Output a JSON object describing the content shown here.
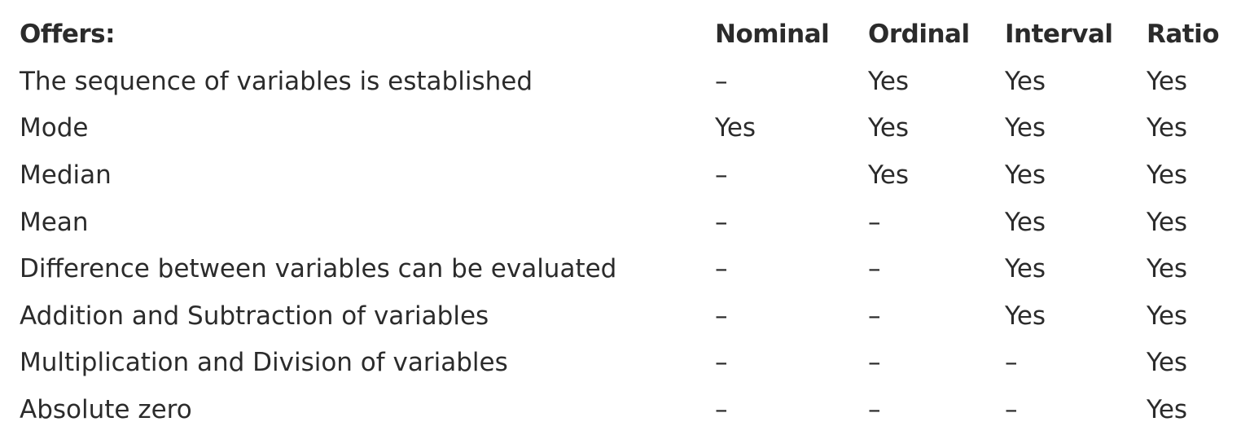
{
  "table": {
    "headers": [
      "Offers:",
      "Nominal",
      "Ordinal",
      "Interval",
      "Ratio"
    ],
    "rows": [
      [
        "The sequence of variables is established",
        "–",
        "Yes",
        "Yes",
        "Yes"
      ],
      [
        "Mode",
        "Yes",
        "Yes",
        "Yes",
        "Yes"
      ],
      [
        "Median",
        "–",
        "Yes",
        "Yes",
        "Yes"
      ],
      [
        "Mean",
        "–",
        "–",
        "Yes",
        "Yes"
      ],
      [
        "Difference between variables can be evaluated",
        "–",
        "–",
        "Yes",
        "Yes"
      ],
      [
        "Addition and Subtraction of variables",
        "–",
        "–",
        "Yes",
        "Yes"
      ],
      [
        "Multiplication and Division of variables",
        "–",
        "–",
        "–",
        "Yes"
      ],
      [
        "Absolute zero",
        "–",
        "–",
        "–",
        "Yes"
      ]
    ]
  }
}
